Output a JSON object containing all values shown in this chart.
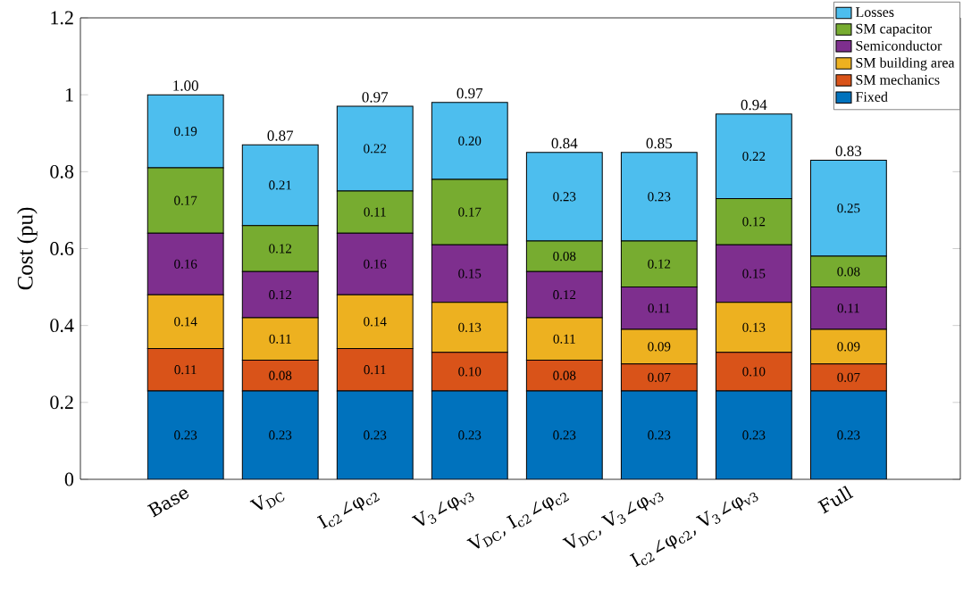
{
  "chart_data": {
    "type": "bar",
    "stacked": true,
    "ylabel": "Cost (pu)",
    "categories": [
      "Base",
      "V$_{DC}$",
      "I$_{c2}$∠φ$_{c2}$",
      "V$_{3}$∠φ$_{v3}$",
      "V$_{DC}$, I$_{c2}$∠φ$_{c2}$",
      "V$_{DC}$, V$_{3}$∠φ$_{v3}$",
      "I$_{c2}$∠φ$_{c2}$, V$_{3}$∠φ$_{v3}$",
      "Full"
    ],
    "series": [
      {
        "name": "Fixed",
        "color": "#0072bd",
        "values": [
          0.23,
          0.23,
          0.23,
          0.23,
          0.23,
          0.23,
          0.23,
          0.23
        ],
        "value_labels": [
          "0.23",
          "0.23",
          "0.23",
          "0.23",
          "0.23",
          "0.23",
          "0.23",
          "0.23"
        ]
      },
      {
        "name": "SM mechanics",
        "color": "#d95319",
        "values": [
          0.11,
          0.08,
          0.11,
          0.1,
          0.08,
          0.07,
          0.1,
          0.07
        ],
        "value_labels": [
          "0.11",
          "0.08",
          "0.11",
          "0.10",
          "0.08",
          "0.07",
          "0.10",
          "0.07"
        ]
      },
      {
        "name": "SM building area",
        "color": "#edb120",
        "values": [
          0.14,
          0.11,
          0.14,
          0.13,
          0.11,
          0.09,
          0.13,
          0.09
        ],
        "value_labels": [
          "0.14",
          "0.11",
          "0.14",
          "0.13",
          "0.11",
          "0.09",
          "0.13",
          "0.09"
        ]
      },
      {
        "name": "Semiconductor",
        "color": "#7e2f8e",
        "values": [
          0.16,
          0.12,
          0.16,
          0.15,
          0.12,
          0.11,
          0.15,
          0.11
        ],
        "value_labels": [
          "0.16",
          "0.12",
          "0.16",
          "0.15",
          "0.12",
          "0.11",
          "0.15",
          "0.11"
        ]
      },
      {
        "name": "SM capacitor",
        "color": "#77ac30",
        "values": [
          0.17,
          0.12,
          0.11,
          0.17,
          0.08,
          0.12,
          0.12,
          0.08
        ],
        "value_labels": [
          "0.17",
          "0.12",
          "0.11",
          "0.17",
          "0.08",
          "0.12",
          "0.12",
          "0.08"
        ]
      },
      {
        "name": "Losses",
        "color": "#4dbeee",
        "values": [
          0.19,
          0.21,
          0.22,
          0.2,
          0.23,
          0.23,
          0.22,
          0.25
        ],
        "value_labels": [
          "0.19",
          "0.21",
          "0.22",
          "0.20",
          "0.23",
          "0.23",
          "0.22",
          "0.25"
        ]
      }
    ],
    "totals": [
      "1.00",
      "0.87",
      "0.97",
      "0.97",
      "0.84",
      "0.85",
      "0.94",
      "0.83"
    ],
    "ylim": [
      0,
      1.2
    ],
    "yticks": [
      0,
      0.2,
      0.4,
      0.6,
      0.8,
      1,
      1.2
    ],
    "grid": false,
    "legend": "top right"
  }
}
